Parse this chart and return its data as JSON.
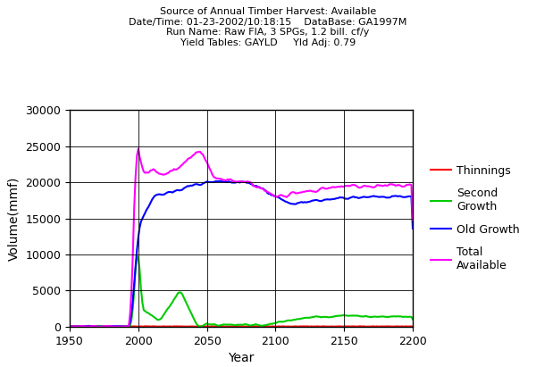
{
  "title_line1": "Source of Annual Timber Harvest: Available",
  "title_line2": "Date/Time: 01-23-2002/10:18:15    DataBase: GA1997M",
  "title_line3": "Run Name: Raw FIA, 3 SPGs, 1.2 bill. cf/y",
  "title_line4": "Yield Tables: GAYLD     Yld Adj: 0.79",
  "xlabel": "Year",
  "ylabel": "Volume(mmf)",
  "xlim": [
    1950,
    2200
  ],
  "ylim": [
    0,
    30000
  ],
  "xticks": [
    1950,
    2000,
    2050,
    2100,
    2150,
    2200
  ],
  "yticks": [
    0,
    5000,
    10000,
    15000,
    20000,
    25000,
    30000
  ],
  "legend": [
    "Thinnings",
    "Second\nGrowth",
    "Old Growth",
    "Total\nAvailable"
  ],
  "colors": {
    "thinnings": "#ff0000",
    "second_growth": "#00cc00",
    "old_growth": "#0000ff",
    "total_available": "#ff00ff"
  },
  "background": "#ffffff",
  "grid_color": "#000000"
}
